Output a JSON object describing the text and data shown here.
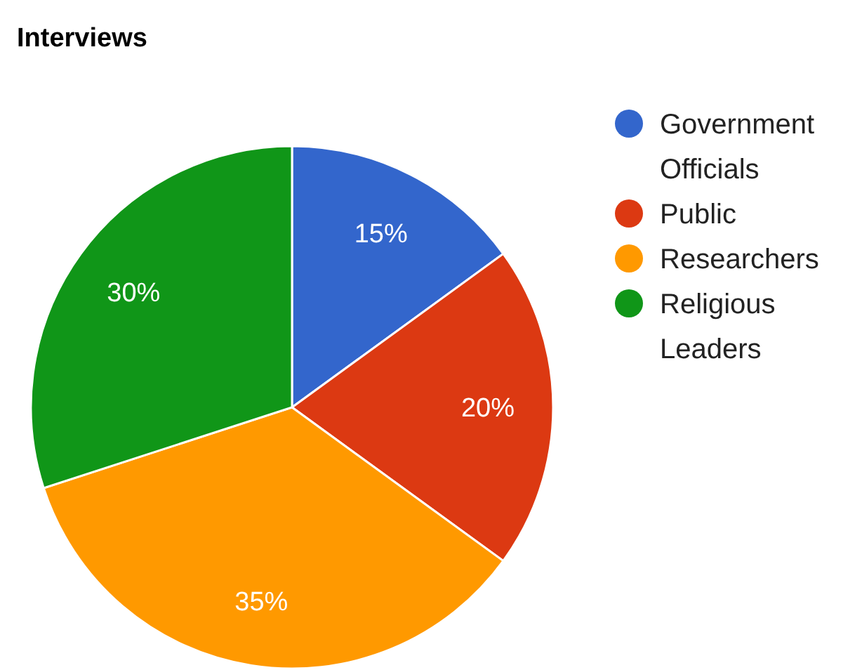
{
  "chart_data": {
    "type": "pie",
    "title": "Interviews",
    "categories": [
      "Government Officials",
      "Public",
      "Researchers",
      "Religious Leaders"
    ],
    "values": [
      15,
      20,
      35,
      30
    ],
    "colors": [
      "#3366cc",
      "#dc3912",
      "#ff9900",
      "#109618"
    ],
    "value_labels": [
      "15%",
      "20%",
      "35%",
      "30%"
    ],
    "legend": "right"
  }
}
